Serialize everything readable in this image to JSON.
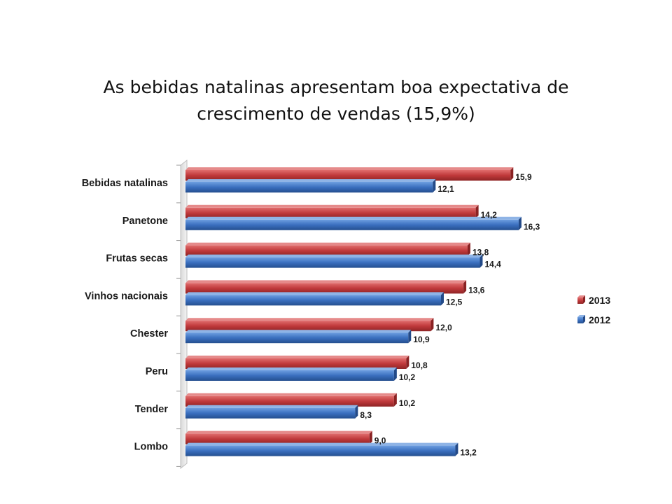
{
  "title": "As bebidas natalinas apresentam boa expectativa de crescimento de vendas (15,9%)",
  "chart_data": {
    "type": "bar",
    "orientation": "horizontal",
    "categories": [
      "Bebidas natalinas",
      "Panetone",
      "Frutas secas",
      "Vinhos nacionais",
      "Chester",
      "Peru",
      "Tender",
      "Lombo"
    ],
    "series": [
      {
        "name": "2013",
        "color": "#C0393B",
        "values": [
          15.9,
          14.2,
          13.8,
          13.6,
          12.0,
          10.8,
          10.2,
          9.0
        ],
        "labels": [
          "15,9",
          "14,2",
          "13,8",
          "13,6",
          "12,0",
          "10,8",
          "10,2",
          "9,0"
        ]
      },
      {
        "name": "2012",
        "color": "#3A6FBF",
        "values": [
          12.1,
          16.3,
          14.4,
          12.5,
          10.9,
          10.2,
          8.3,
          13.2
        ],
        "labels": [
          "12,1",
          "16,3",
          "14,4",
          "12,5",
          "10,9",
          "10,2",
          "8,3",
          "13,2"
        ]
      }
    ],
    "legend": {
      "position": "right",
      "entries": [
        "2013",
        "2012"
      ]
    },
    "grid": false,
    "xaxis_visible": false
  }
}
